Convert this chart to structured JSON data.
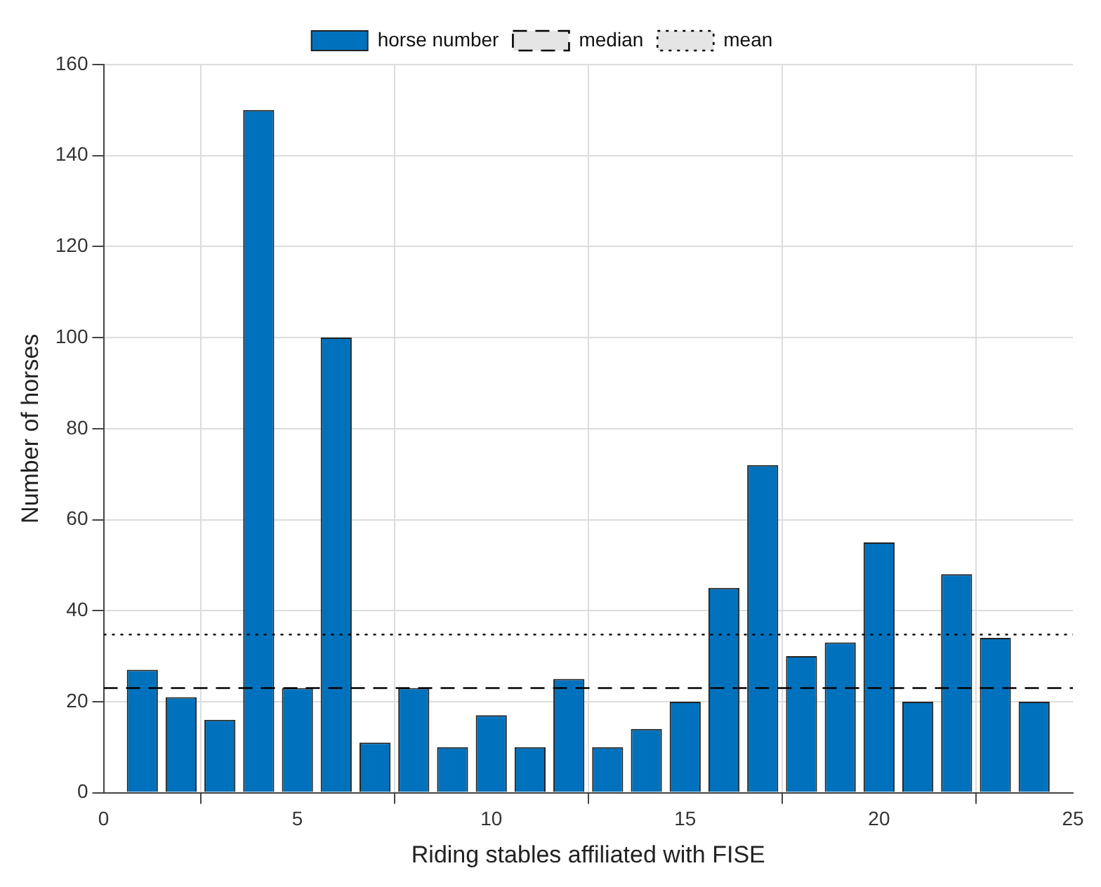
{
  "chart_data": {
    "type": "bar",
    "xlabel": "Riding stables affiliated with FISE",
    "ylabel": "Number of horses",
    "x": [
      1,
      2,
      3,
      4,
      5,
      6,
      7,
      8,
      9,
      10,
      11,
      12,
      13,
      14,
      15,
      16,
      17,
      18,
      19,
      20,
      21,
      22,
      23,
      24
    ],
    "series": [
      {
        "name": "horse number",
        "color": "#0072bd",
        "values": [
          27,
          21,
          16,
          150,
          23,
          100,
          11,
          23,
          10,
          17,
          10,
          25,
          10,
          14,
          20,
          45,
          72,
          30,
          33,
          55,
          20,
          48,
          34,
          20
        ]
      }
    ],
    "ref_lines": [
      {
        "axis": "y",
        "value": 23,
        "label": "median",
        "line_style": "dashed",
        "color": "#000000"
      },
      {
        "axis": "y",
        "value": 34.75,
        "label": "mean",
        "line_style": "dotted",
        "color": "#000000"
      }
    ],
    "xlim": [
      0,
      25
    ],
    "xticks": [
      0,
      5,
      10,
      15,
      20,
      25
    ],
    "ylim": [
      0,
      160
    ],
    "yticks": [
      0,
      20,
      40,
      60,
      80,
      100,
      120,
      140,
      160
    ],
    "grid": true,
    "legend": "top"
  }
}
